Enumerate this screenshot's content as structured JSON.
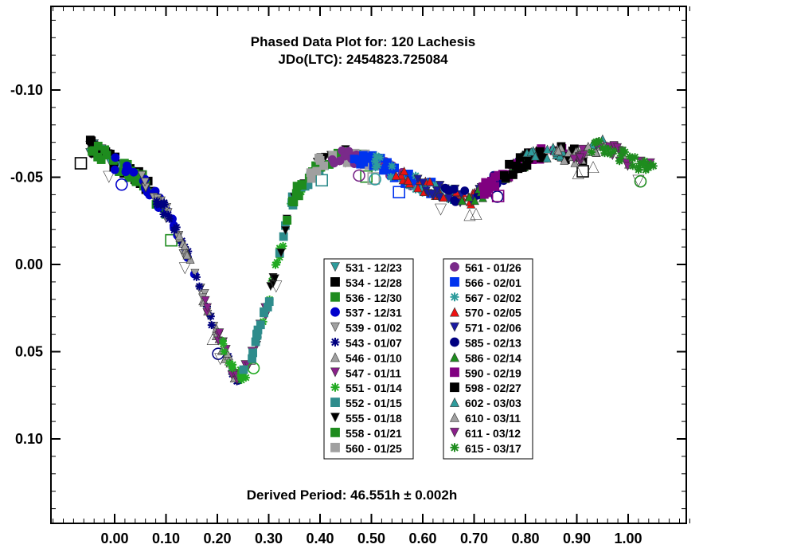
{
  "chart_data": {
    "type": "scatter",
    "title": "Phased Data Plot for: 120 Lachesis",
    "subtitle": "JDo(LTC): 2454823.725084",
    "annotation": "Derived Period: 46.551h  ± 0.002h",
    "xlabel": "",
    "ylabel": "",
    "xlim": [
      -0.12,
      1.12
    ],
    "ylim": [
      -0.14,
      0.14
    ],
    "y_inverted": true,
    "grid": false,
    "x_ticks": [
      {
        "value": 0.0,
        "label": "0.00"
      },
      {
        "value": 0.1,
        "label": "0.10"
      },
      {
        "value": 0.2,
        "label": "0.20"
      },
      {
        "value": 0.3,
        "label": "0.30"
      },
      {
        "value": 0.4,
        "label": "0.40"
      },
      {
        "value": 0.5,
        "label": "0.50"
      },
      {
        "value": 0.6,
        "label": "0.60"
      },
      {
        "value": 0.7,
        "label": "0.70"
      },
      {
        "value": 0.8,
        "label": "0.80"
      },
      {
        "value": 0.9,
        "label": "0.90"
      },
      {
        "value": 1.0,
        "label": "1.00"
      }
    ],
    "y_ticks": [
      {
        "value": -0.1,
        "label": "-0.10"
      },
      {
        "value": -0.05,
        "label": "-0.05"
      },
      {
        "value": 0.0,
        "label": "0.00"
      },
      {
        "value": 0.05,
        "label": "0.05"
      },
      {
        "value": 0.1,
        "label": "0.10"
      }
    ],
    "legend_placement": "center",
    "legend": [
      [
        {
          "label": "531 - 12/23",
          "marker": "triangle-down",
          "color": "#2e9c9c"
        },
        {
          "label": "534 - 12/28",
          "marker": "square",
          "color": "#000000"
        },
        {
          "label": "536 - 12/30",
          "marker": "square",
          "color": "#1e8c1e"
        },
        {
          "label": "537 - 12/31",
          "marker": "circle",
          "color": "#0000cc"
        },
        {
          "label": "539 - 01/02",
          "marker": "triangle-down",
          "color": "#a0a0a0"
        },
        {
          "label": "543 - 01/07",
          "marker": "asterisk",
          "color": "#000080"
        },
        {
          "label": "546 - 01/10",
          "marker": "triangle-up",
          "color": "#a0a0a0"
        },
        {
          "label": "547 - 01/11",
          "marker": "triangle-down",
          "color": "#8a1f8a"
        },
        {
          "label": "551 - 01/14",
          "marker": "asterisk",
          "color": "#22aa22"
        },
        {
          "label": "552 - 01/15",
          "marker": "square",
          "color": "#2e8c8c"
        },
        {
          "label": "555 - 01/18",
          "marker": "triangle-down",
          "color": "#000000"
        },
        {
          "label": "558 - 01/21",
          "marker": "square",
          "color": "#1e8c1e"
        },
        {
          "label": "560 - 01/25",
          "marker": "square",
          "color": "#a0a0a0"
        }
      ],
      [
        {
          "label": "561 - 01/26",
          "marker": "circle",
          "color": "#7a2a8a"
        },
        {
          "label": "566 - 02/01",
          "marker": "square",
          "color": "#0033ee"
        },
        {
          "label": "567 - 02/02",
          "marker": "asterisk",
          "color": "#2e9c9c"
        },
        {
          "label": "570 - 02/05",
          "marker": "triangle-up",
          "color": "#ee1111"
        },
        {
          "label": "571 - 02/06",
          "marker": "triangle-down",
          "color": "#1a1aa0"
        },
        {
          "label": "585 - 02/13",
          "marker": "circle",
          "color": "#000080"
        },
        {
          "label": "586 - 02/14",
          "marker": "triangle-up",
          "color": "#1e8c1e"
        },
        {
          "label": "590 - 02/19",
          "marker": "square",
          "color": "#800080"
        },
        {
          "label": "598 - 02/27",
          "marker": "square",
          "color": "#000000"
        },
        {
          "label": "602 - 03/03",
          "marker": "triangle-up",
          "color": "#2e9c9c"
        },
        {
          "label": "610 - 03/11",
          "marker": "triangle-up",
          "color": "#a0a0a0"
        },
        {
          "label": "611 - 03/12",
          "marker": "triangle-down",
          "color": "#8a1f8a"
        },
        {
          "label": "615 - 03/17",
          "marker": "asterisk",
          "color": "#1e8c1e"
        }
      ]
    ],
    "curve_shape": {
      "description_points": [
        [
          -0.05,
          -0.068
        ],
        [
          0.0,
          -0.058
        ],
        [
          0.05,
          -0.05
        ],
        [
          0.1,
          -0.03
        ],
        [
          0.15,
          0.0
        ],
        [
          0.2,
          0.04
        ],
        [
          0.235,
          0.065
        ],
        [
          0.26,
          0.06
        ],
        [
          0.3,
          0.02
        ],
        [
          0.35,
          -0.04
        ],
        [
          0.4,
          -0.058
        ],
        [
          0.45,
          -0.062
        ],
        [
          0.5,
          -0.06
        ],
        [
          0.55,
          -0.052
        ],
        [
          0.6,
          -0.045
        ],
        [
          0.65,
          -0.04
        ],
        [
          0.7,
          -0.038
        ],
        [
          0.75,
          -0.05
        ],
        [
          0.8,
          -0.06
        ],
        [
          0.85,
          -0.065
        ],
        [
          0.9,
          -0.062
        ],
        [
          0.95,
          -0.068
        ],
        [
          1.0,
          -0.06
        ],
        [
          1.05,
          -0.055
        ]
      ]
    }
  }
}
